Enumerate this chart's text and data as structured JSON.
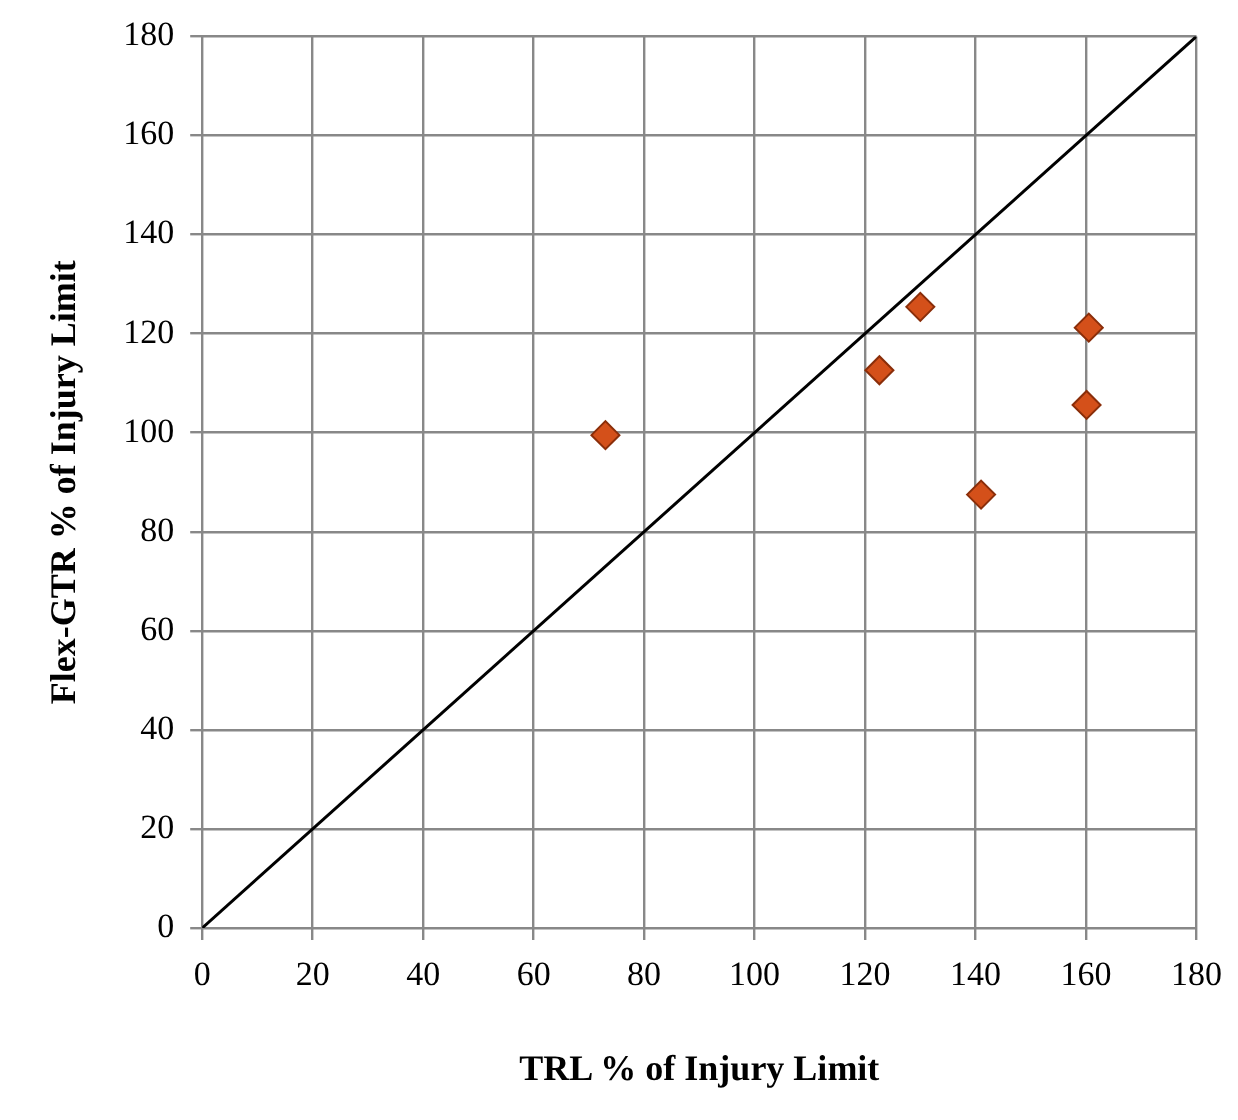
{
  "chart_data": {
    "type": "scatter",
    "xlabel": "TRL % of Injury Limit",
    "ylabel": "Flex-GTR % of Injury Limit",
    "xlim": [
      0,
      180
    ],
    "ylim": [
      0,
      180
    ],
    "xticks": [
      0,
      20,
      40,
      60,
      80,
      100,
      120,
      140,
      160,
      180
    ],
    "yticks": [
      0,
      20,
      40,
      60,
      80,
      100,
      120,
      140,
      160,
      180
    ],
    "grid": true,
    "legend": false,
    "marker": "diamond",
    "series": [
      {
        "color": "#d4501a",
        "x": [
          73,
          122.6,
          130,
          160.5,
          160.1,
          141
        ],
        "values": [
          99.5,
          112.6,
          125.4,
          121.2,
          105.6,
          87.5
        ]
      },
      {
        "type": "line",
        "color": "#000000",
        "marker": "none",
        "line_style": "solid",
        "x": [
          0,
          180
        ],
        "values": [
          0,
          180
        ]
      }
    ]
  }
}
